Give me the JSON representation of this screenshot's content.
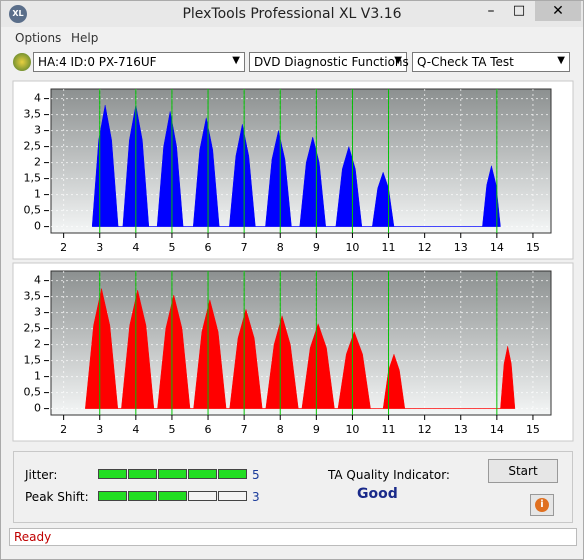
{
  "window": {
    "title": "PlexTools Professional XL V3.16",
    "icon": "XL"
  },
  "menu": [
    "Options",
    "Help"
  ],
  "toolbar": {
    "drive": "HA:4 ID:0  PX-716UF",
    "function": "DVD Diagnostic Functions",
    "test": "Q-Check TA Test"
  },
  "chart_data": [
    {
      "type": "area",
      "xlim": [
        1.65,
        15.5
      ],
      "ylim": [
        -0.2,
        4.3
      ],
      "xticks": [
        2,
        3,
        4,
        5,
        6,
        7,
        8,
        9,
        10,
        11,
        12,
        13,
        14,
        15
      ],
      "yticks": [
        0,
        {
          "value": 0.5,
          "label": "0,5"
        },
        1,
        {
          "value": 1.5,
          "label": "1,5"
        },
        2,
        {
          "value": 2.5,
          "label": "2,5"
        },
        3,
        {
          "value": 3.5,
          "label": "3,5"
        },
        4
      ],
      "grid": true,
      "reference_lines": {
        "color": "#00c000",
        "x": [
          3,
          4,
          5,
          6,
          7,
          8,
          9,
          10,
          11,
          14
        ]
      },
      "x": [
        2.79,
        2.97,
        3.15,
        3.33,
        3.51,
        3.64,
        3.82,
        4.0,
        4.18,
        4.36,
        4.59,
        4.77,
        4.95,
        5.13,
        5.31,
        5.59,
        5.77,
        5.95,
        6.13,
        6.31,
        6.59,
        6.77,
        6.95,
        7.13,
        7.31,
        7.59,
        7.77,
        7.95,
        8.13,
        8.31,
        8.54,
        8.72,
        8.9,
        9.08,
        9.26,
        9.54,
        9.72,
        9.9,
        10.08,
        10.26,
        10.55,
        10.7,
        10.85,
        11.0,
        11.15,
        13.6,
        13.72,
        13.85,
        13.98,
        14.1
      ],
      "series": [
        {
          "color": "#0000ff",
          "values": [
            0,
            2.7,
            3.8,
            2.7,
            0,
            0,
            2.7,
            3.8,
            2.7,
            0,
            0,
            2.5,
            3.6,
            2.5,
            0,
            0,
            2.4,
            3.4,
            2.4,
            0,
            0,
            2.2,
            3.2,
            2.2,
            0,
            0,
            2.1,
            3.0,
            2.1,
            0,
            0,
            2.0,
            2.8,
            2.0,
            0,
            0,
            1.8,
            2.5,
            1.8,
            0,
            0,
            1.2,
            1.7,
            1.2,
            0,
            0,
            1.3,
            1.9,
            1.3,
            0
          ]
        }
      ]
    },
    {
      "type": "area",
      "xlim": [
        1.65,
        15.5
      ],
      "ylim": [
        -0.2,
        4.3
      ],
      "xticks": [
        2,
        3,
        4,
        5,
        6,
        7,
        8,
        9,
        10,
        11,
        12,
        13,
        14,
        15
      ],
      "yticks": [
        0,
        {
          "value": 0.5,
          "label": "0,5"
        },
        1,
        {
          "value": 1.5,
          "label": "1,5"
        },
        2,
        {
          "value": 2.5,
          "label": "2,5"
        },
        3,
        {
          "value": 3.5,
          "label": "3,5"
        },
        4
      ],
      "grid": true,
      "reference_lines": {
        "color": "#00c000",
        "x": [
          3,
          4,
          5,
          6,
          7,
          8,
          9,
          10,
          11,
          14
        ]
      },
      "x": [
        2.6,
        2.83,
        3.05,
        3.28,
        3.5,
        3.6,
        3.83,
        4.05,
        4.28,
        4.5,
        4.6,
        4.83,
        5.05,
        5.28,
        5.5,
        5.6,
        5.83,
        6.05,
        6.28,
        6.5,
        6.6,
        6.83,
        7.05,
        7.28,
        7.5,
        7.6,
        7.83,
        8.05,
        8.28,
        8.5,
        8.6,
        8.83,
        9.05,
        9.28,
        9.5,
        9.6,
        9.83,
        10.05,
        10.28,
        10.5,
        10.85,
        11.0,
        11.15,
        11.3,
        11.45,
        14.1,
        14.2,
        14.3,
        14.4,
        14.5
      ],
      "series": [
        {
          "color": "#ff0000",
          "values": [
            0,
            2.6,
            3.75,
            2.6,
            0,
            0,
            2.6,
            3.7,
            2.6,
            0,
            0,
            2.5,
            3.55,
            2.5,
            0,
            0,
            2.4,
            3.4,
            2.4,
            0,
            0,
            2.2,
            3.1,
            2.2,
            0,
            0,
            2.0,
            2.9,
            2.0,
            0,
            0,
            1.9,
            2.65,
            1.9,
            0,
            0,
            1.7,
            2.4,
            1.7,
            0,
            0,
            1.2,
            1.7,
            1.2,
            0,
            0,
            1.4,
            1.95,
            1.4,
            0
          ]
        }
      ]
    }
  ],
  "results": {
    "jitter_label": "Jitter:",
    "jitter": 5,
    "peak_shift_label": "Peak Shift:",
    "peak_shift": 3,
    "ta_label": "TA Quality Indicator:",
    "ta_value": "Good",
    "start": "Start"
  },
  "status": "Ready"
}
